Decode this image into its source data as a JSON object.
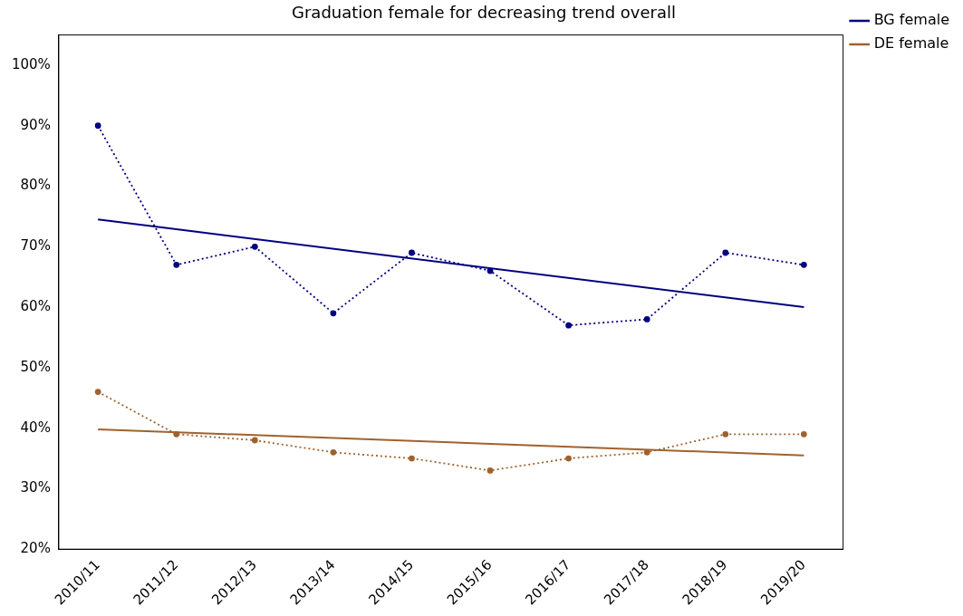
{
  "chart_data": {
    "type": "line",
    "title": "Graduation female for decreasing trend overall",
    "categories": [
      "2010/11",
      "2011/12",
      "2012/13",
      "2013/14",
      "2014/15",
      "2015/16",
      "2016/17",
      "2017/18",
      "2018/19",
      "2019/20"
    ],
    "series": [
      {
        "color": "#000080",
        "line_style": "dotted",
        "marker": "circle",
        "values": [
          90,
          67,
          70,
          59,
          69,
          66,
          57,
          58,
          69,
          67
        ]
      },
      {
        "name": "BG female",
        "color": "#000080",
        "line_style": "solid",
        "marker": "none",
        "x": [
          "2010/11",
          "2019/20"
        ],
        "values": [
          74.5,
          60
        ]
      },
      {
        "color": "#a0622d",
        "line_style": "dotted",
        "marker": "circle",
        "values": [
          46,
          39,
          38,
          36,
          35,
          33,
          35,
          36,
          39,
          39
        ]
      },
      {
        "name": "DE female",
        "color": "#a0622d",
        "line_style": "solid",
        "marker": "none",
        "x": [
          "2010/11",
          "2019/20"
        ],
        "values": [
          39.8,
          35.5
        ]
      }
    ],
    "ylim": [
      20,
      105
    ],
    "yticks": [
      {
        "value": 20,
        "label": "20%"
      },
      {
        "value": 30,
        "label": "30%"
      },
      {
        "value": 40,
        "label": "40%"
      },
      {
        "value": 50,
        "label": "50%"
      },
      {
        "value": 60,
        "label": "60%"
      },
      {
        "value": 70,
        "label": "70%"
      },
      {
        "value": 80,
        "label": "80%"
      },
      {
        "value": 90,
        "label": "90%"
      },
      {
        "value": 100,
        "label": "100%"
      }
    ],
    "grid": false,
    "legend": "top right"
  }
}
